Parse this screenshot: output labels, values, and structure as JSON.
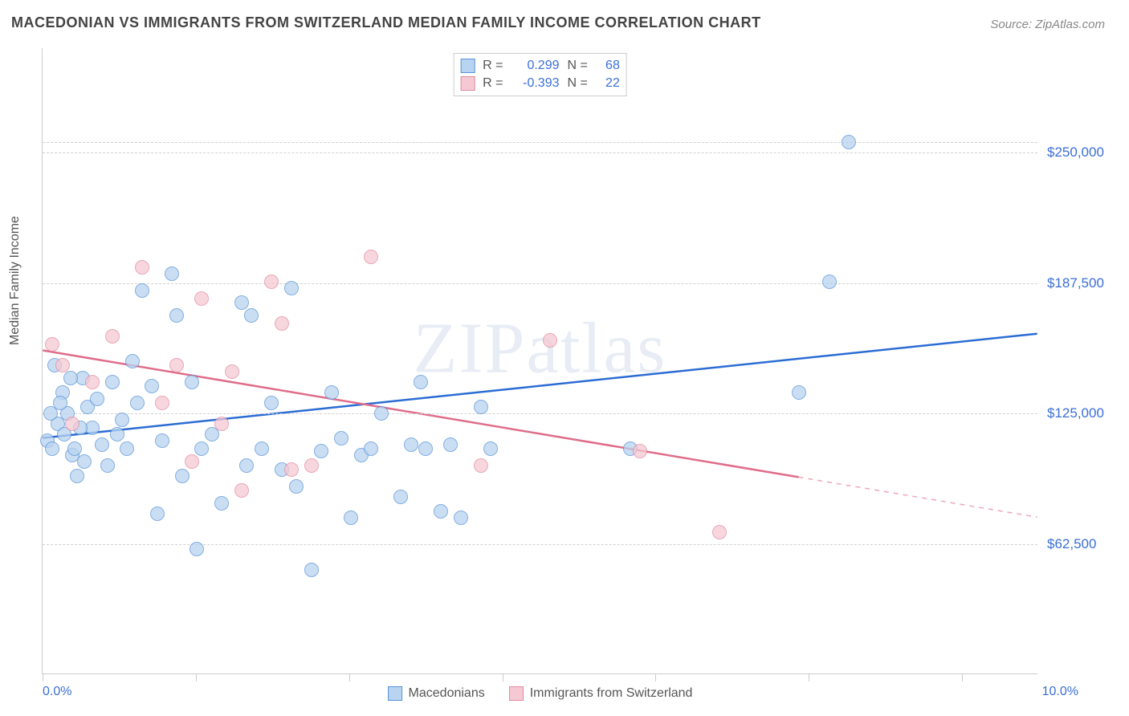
{
  "title": "MACEDONIAN VS IMMIGRANTS FROM SWITZERLAND MEDIAN FAMILY INCOME CORRELATION CHART",
  "source_label": "Source:",
  "source_value": "ZipAtlas.com",
  "y_axis_label": "Median Family Income",
  "watermark": "ZIPatlas",
  "chart": {
    "type": "scatter",
    "xlim": [
      0,
      10
    ],
    "ylim": [
      0,
      300000
    ],
    "x_tick_positions": [
      0,
      1.54,
      3.08,
      4.62,
      6.15,
      7.69,
      9.23
    ],
    "x_tick_labels_shown": {
      "0": "0.0%",
      "10": "10.0%"
    },
    "y_ticks": [
      62500,
      125000,
      187500,
      250000
    ],
    "y_tick_labels": [
      "$62,500",
      "$125,000",
      "$187,500",
      "$250,000"
    ],
    "grid_color": "#d0d0d0",
    "background_color": "#ffffff",
    "axis_color": "#cccccc",
    "tick_label_color": "#3b6fd6",
    "marker_radius": 9,
    "marker_opacity": 0.75,
    "series": [
      {
        "name": "Macedonians",
        "fill_color": "#b9d4f0",
        "stroke_color": "#5a94d6",
        "r_value": 0.299,
        "n_value": 68,
        "trend": {
          "y_at_x0": 113000,
          "y_at_x10": 163000,
          "line_color": "#2b6cd4",
          "line_width": 2.5,
          "solid_to_x": 10
        },
        "points": [
          [
            0.05,
            112000
          ],
          [
            0.1,
            108000
          ],
          [
            0.15,
            120000
          ],
          [
            0.2,
            135000
          ],
          [
            0.25,
            125000
          ],
          [
            0.3,
            105000
          ],
          [
            0.35,
            95000
          ],
          [
            0.4,
            142000
          ],
          [
            0.45,
            128000
          ],
          [
            0.5,
            118000
          ],
          [
            0.55,
            132000
          ],
          [
            0.6,
            110000
          ],
          [
            0.65,
            100000
          ],
          [
            0.7,
            140000
          ],
          [
            0.75,
            115000
          ],
          [
            0.8,
            122000
          ],
          [
            0.85,
            108000
          ],
          [
            0.9,
            150000
          ],
          [
            0.95,
            130000
          ],
          [
            1.0,
            184000
          ],
          [
            1.1,
            138000
          ],
          [
            1.15,
            77000
          ],
          [
            1.2,
            112000
          ],
          [
            1.3,
            192000
          ],
          [
            1.35,
            172000
          ],
          [
            1.4,
            95000
          ],
          [
            1.5,
            140000
          ],
          [
            1.55,
            60000
          ],
          [
            1.6,
            108000
          ],
          [
            1.7,
            115000
          ],
          [
            1.8,
            82000
          ],
          [
            2.0,
            178000
          ],
          [
            2.05,
            100000
          ],
          [
            2.1,
            172000
          ],
          [
            2.2,
            108000
          ],
          [
            2.3,
            130000
          ],
          [
            2.4,
            98000
          ],
          [
            2.5,
            185000
          ],
          [
            2.55,
            90000
          ],
          [
            2.7,
            50000
          ],
          [
            2.8,
            107000
          ],
          [
            2.9,
            135000
          ],
          [
            3.0,
            113000
          ],
          [
            3.1,
            75000
          ],
          [
            3.2,
            105000
          ],
          [
            3.3,
            108000
          ],
          [
            3.4,
            125000
          ],
          [
            3.6,
            85000
          ],
          [
            3.7,
            110000
          ],
          [
            3.8,
            140000
          ],
          [
            3.85,
            108000
          ],
          [
            4.0,
            78000
          ],
          [
            4.1,
            110000
          ],
          [
            4.2,
            75000
          ],
          [
            4.4,
            128000
          ],
          [
            4.5,
            108000
          ],
          [
            5.9,
            108000
          ],
          [
            7.9,
            188000
          ],
          [
            8.1,
            255000
          ],
          [
            7.6,
            135000
          ],
          [
            0.12,
            148000
          ],
          [
            0.18,
            130000
          ],
          [
            0.22,
            115000
          ],
          [
            0.28,
            142000
          ],
          [
            0.08,
            125000
          ],
          [
            0.32,
            108000
          ],
          [
            0.38,
            118000
          ],
          [
            0.42,
            102000
          ]
        ]
      },
      {
        "name": "Immigrants from Switzerland",
        "fill_color": "#f5c9d3",
        "stroke_color": "#e38ba0",
        "r_value": -0.393,
        "n_value": 22,
        "trend": {
          "y_at_x0": 155000,
          "y_at_x10": 75000,
          "line_color": "#e06d8a",
          "line_width": 2.5,
          "solid_to_x": 7.6
        },
        "points": [
          [
            0.1,
            158000
          ],
          [
            0.2,
            148000
          ],
          [
            0.3,
            120000
          ],
          [
            0.5,
            140000
          ],
          [
            0.7,
            162000
          ],
          [
            1.0,
            195000
          ],
          [
            1.2,
            130000
          ],
          [
            1.35,
            148000
          ],
          [
            1.5,
            102000
          ],
          [
            1.8,
            120000
          ],
          [
            1.9,
            145000
          ],
          [
            2.0,
            88000
          ],
          [
            2.3,
            188000
          ],
          [
            2.4,
            168000
          ],
          [
            2.5,
            98000
          ],
          [
            2.7,
            100000
          ],
          [
            3.3,
            200000
          ],
          [
            4.4,
            100000
          ],
          [
            5.1,
            160000
          ],
          [
            6.0,
            107000
          ],
          [
            6.8,
            68000
          ],
          [
            1.6,
            180000
          ]
        ]
      }
    ]
  },
  "legend_bottom": [
    {
      "label": "Macedonians",
      "fill": "#b9d4f0",
      "stroke": "#5a94d6"
    },
    {
      "label": "Immigrants from Switzerland",
      "fill": "#f5c9d3",
      "stroke": "#e38ba0"
    }
  ],
  "legend_top_labels": {
    "r": "R =",
    "n": "N ="
  }
}
